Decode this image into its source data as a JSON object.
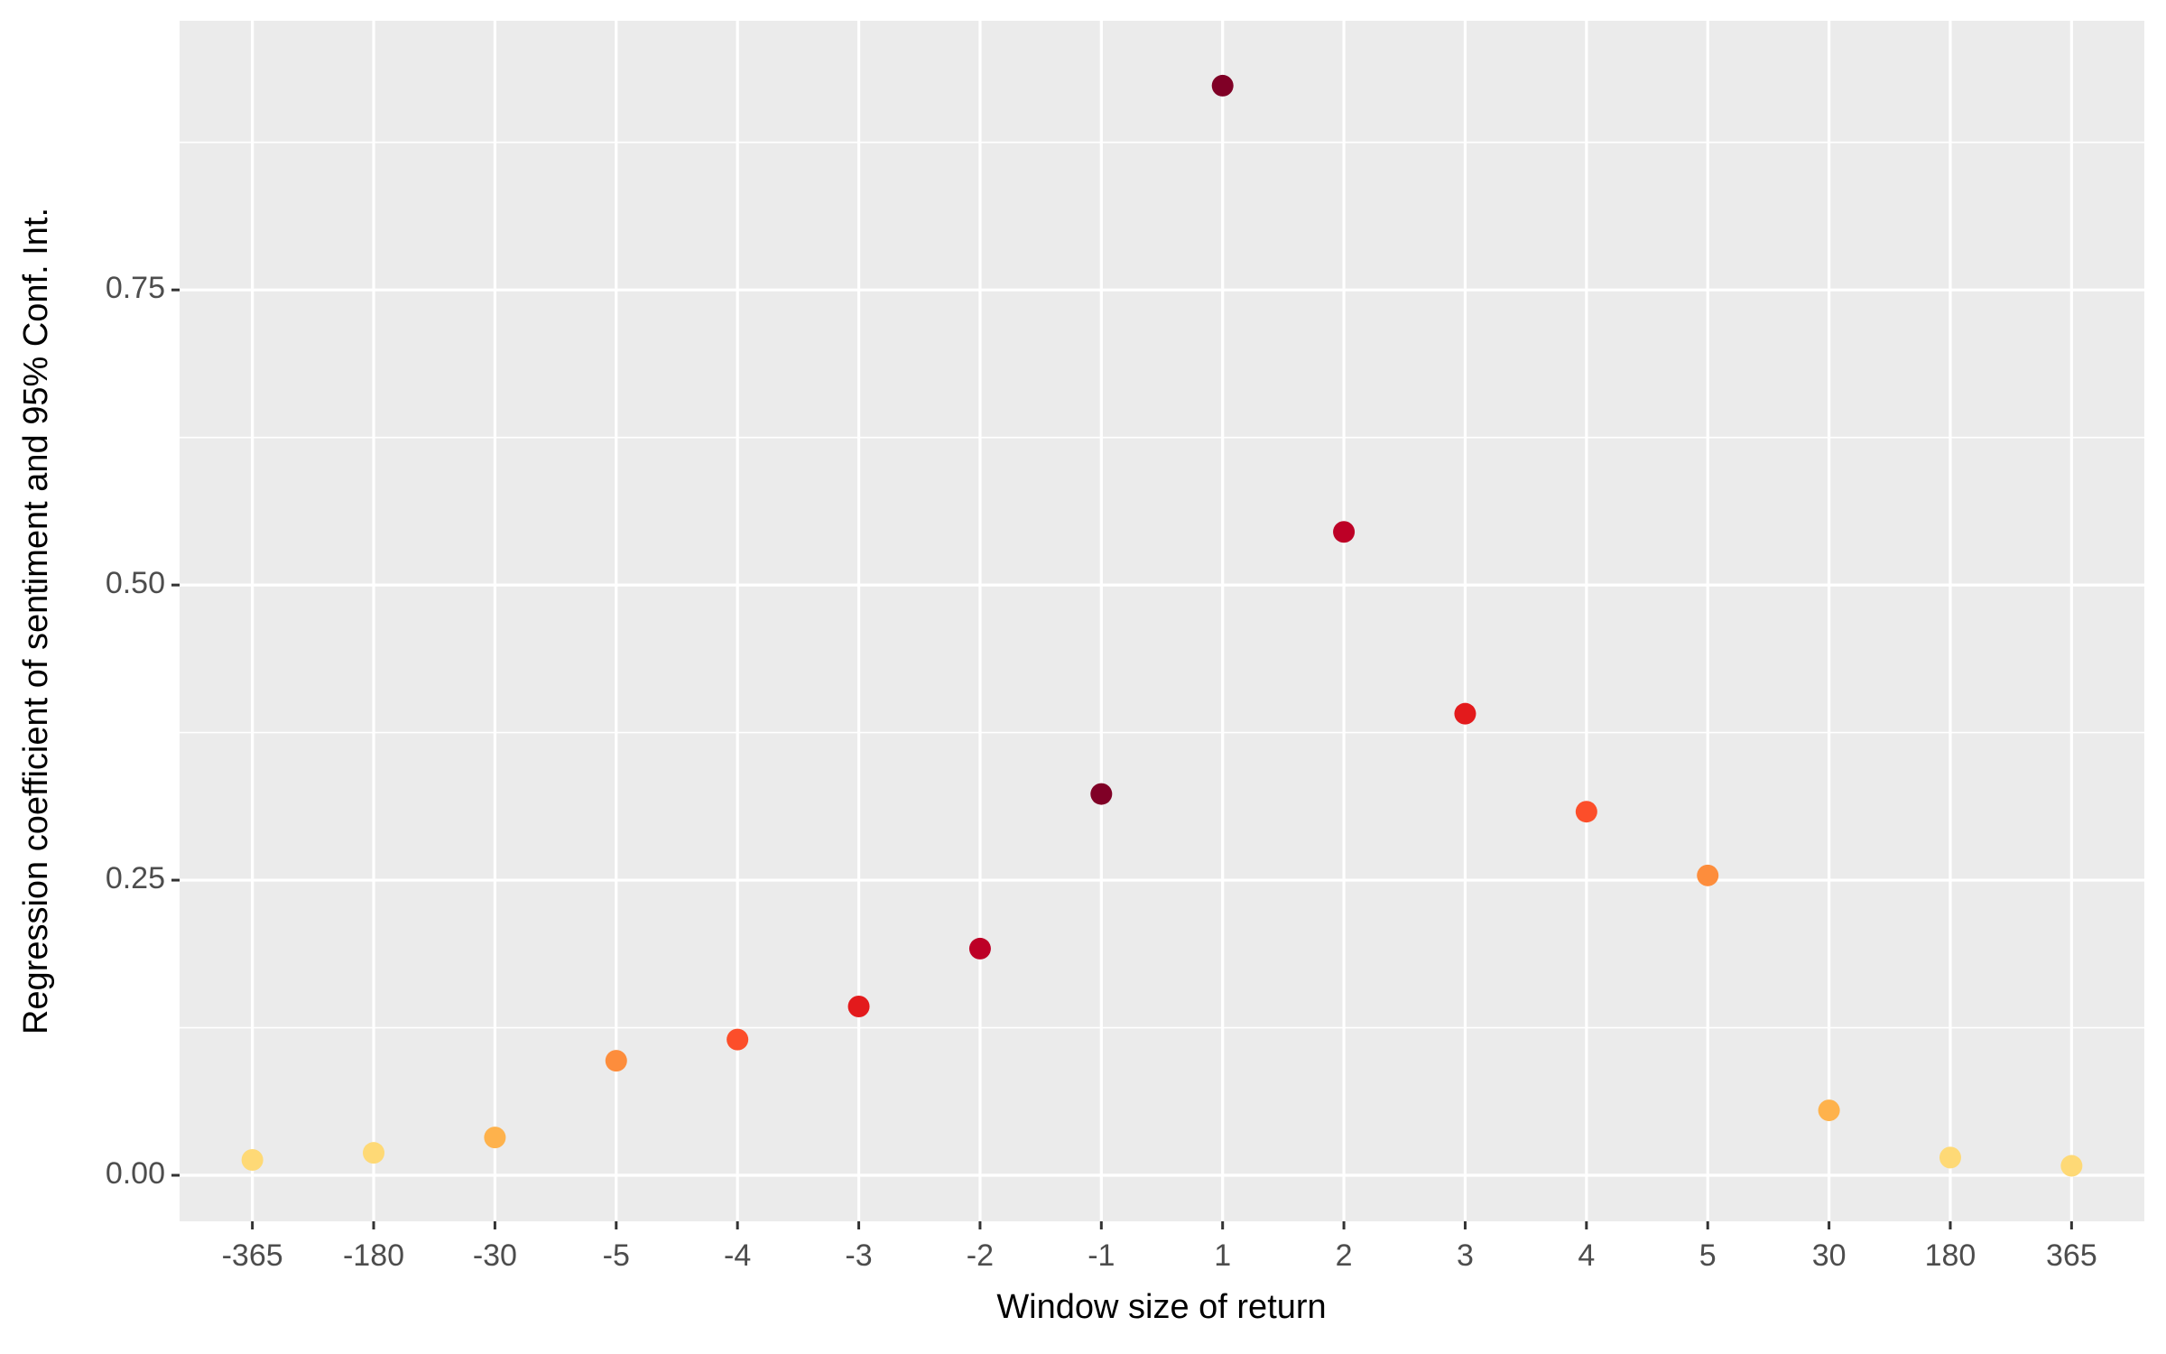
{
  "chart_data": {
    "type": "scatter",
    "xlabel": "Window size of return",
    "ylabel": "Regression coefficient of sentiment and 95% Conf. Int.",
    "categories": [
      "-365",
      "-180",
      "-30",
      "-5",
      "-4",
      "-3",
      "-2",
      "-1",
      "1",
      "2",
      "3",
      "4",
      "5",
      "30",
      "180",
      "365"
    ],
    "values": [
      0.013,
      0.019,
      0.032,
      0.097,
      0.115,
      0.143,
      0.192,
      0.323,
      0.923,
      0.545,
      0.391,
      0.308,
      0.254,
      0.055,
      0.015,
      0.008
    ],
    "colors": [
      "#fed976",
      "#fed976",
      "#feb24c",
      "#fd8d3c",
      "#fc4e2a",
      "#e31a1c",
      "#bd0026",
      "#800026",
      "#800026",
      "#bd0026",
      "#e31a1c",
      "#fc4e2a",
      "#fd8d3c",
      "#feb24c",
      "#fed976",
      "#fed976"
    ],
    "ylim": [
      -0.039,
      0.978
    ],
    "yticks": [
      {
        "value": 0,
        "label": "0.00"
      },
      {
        "value": 0.25,
        "label": "0.25"
      },
      {
        "value": 0.5,
        "label": "0.50"
      },
      {
        "value": 0.75,
        "label": "0.75"
      }
    ],
    "minor_yticks": [
      0.125,
      0.375,
      0.625,
      0.875
    ],
    "grid": true
  }
}
